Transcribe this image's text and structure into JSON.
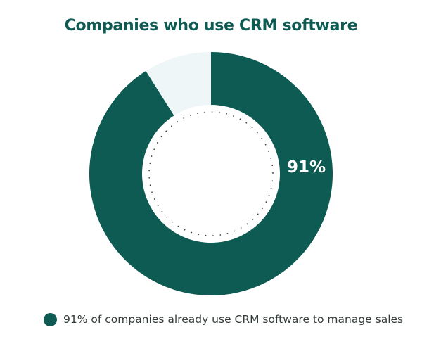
{
  "chart_data": {
    "type": "pie",
    "title": "Companies who use CRM software",
    "slices": [
      {
        "value": 91,
        "label": "91%",
        "color": "#0e5b53"
      },
      {
        "value": 9,
        "label": "",
        "color": "#eff6f8"
      }
    ],
    "legend": {
      "placement": "bottom",
      "entries": [
        {
          "text": "91% of companies already use CRM software to manage sales",
          "color": "#0e5b53"
        }
      ]
    }
  },
  "colors": {
    "title": "#0e5b53",
    "accent": "#0e5b53",
    "remainder": "#eff6f8",
    "label": "#ffffff",
    "inner_dots": "#3a3a3a"
  }
}
